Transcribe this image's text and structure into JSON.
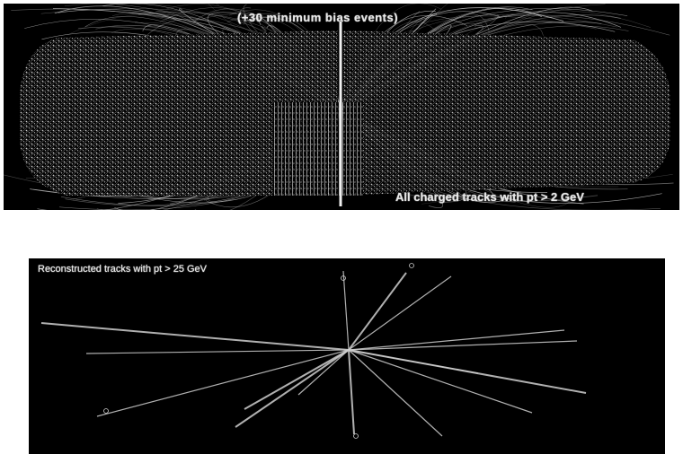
{
  "top_panel": {
    "title": "(+30 minimum bias events)",
    "caption": "All charged tracks with pt > 2 GeV"
  },
  "bottom_panel": {
    "title": "Reconstructed tracks with pt > 25 GeV"
  },
  "colors": {
    "background": "#000000",
    "tracks": "#cfcfcf"
  }
}
